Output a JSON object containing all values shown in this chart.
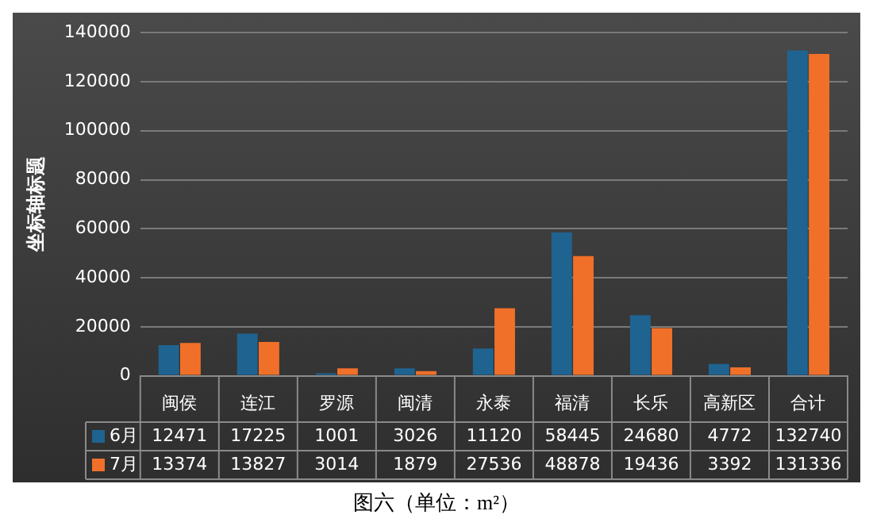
{
  "chart_data": {
    "type": "bar",
    "ylabel": "坐标轴标题",
    "categories": [
      "闽侯",
      "连江",
      "罗源",
      "闽清",
      "永泰",
      "福清",
      "长乐",
      "高新区",
      "合计"
    ],
    "series": [
      {
        "name": "6月",
        "color": "#1f6391",
        "values": [
          12471,
          17225,
          1001,
          3026,
          11120,
          58445,
          24680,
          4772,
          132740
        ]
      },
      {
        "name": "7月",
        "color": "#f0702a",
        "values": [
          13374,
          13827,
          3014,
          1879,
          27536,
          48878,
          19436,
          3392,
          131336
        ]
      }
    ],
    "ylim": [
      0,
      140000
    ],
    "yticks": [
      0,
      20000,
      40000,
      60000,
      80000,
      100000,
      120000,
      140000
    ],
    "grid": "y",
    "legend": "bottom",
    "data_labels": true,
    "annotations": [
      "图六（单位：m²）"
    ]
  }
}
